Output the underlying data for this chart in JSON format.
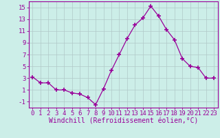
{
  "x": [
    0,
    1,
    2,
    3,
    4,
    5,
    6,
    7,
    8,
    9,
    10,
    11,
    12,
    13,
    14,
    15,
    16,
    17,
    18,
    19,
    20,
    21,
    22,
    23
  ],
  "y": [
    3.2,
    2.2,
    2.2,
    1.0,
    1.0,
    0.5,
    0.3,
    -0.3,
    -1.5,
    1.2,
    4.3,
    7.0,
    9.7,
    12.0,
    13.2,
    15.2,
    13.5,
    11.2,
    9.5,
    6.3,
    5.0,
    4.8,
    3.0,
    3.0
  ],
  "line_color": "#990099",
  "marker": "+",
  "marker_size": 4,
  "bg_color": "#cceee8",
  "grid_color": "#b0c8c8",
  "axis_color": "#990099",
  "xlabel": "Windchill (Refroidissement éolien,°C)",
  "xlim": [
    -0.5,
    23.5
  ],
  "ylim": [
    -2.0,
    16.0
  ],
  "yticks": [
    -1,
    1,
    3,
    5,
    7,
    9,
    11,
    13,
    15
  ],
  "xticks": [
    0,
    1,
    2,
    3,
    4,
    5,
    6,
    7,
    8,
    9,
    10,
    11,
    12,
    13,
    14,
    15,
    16,
    17,
    18,
    19,
    20,
    21,
    22,
    23
  ],
  "tick_fontsize": 6.5,
  "label_fontsize": 7.0
}
